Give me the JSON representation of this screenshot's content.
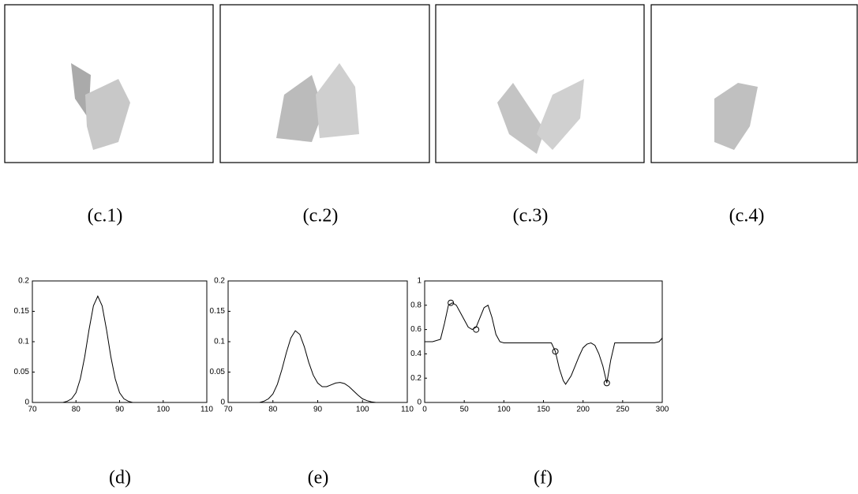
{
  "images": [
    {
      "caption": "(c.1)"
    },
    {
      "caption": "(c.2)"
    },
    {
      "caption": "(c.3)"
    },
    {
      "caption": "(c.4)"
    }
  ],
  "chart_data": [
    {
      "type": "line",
      "caption": "(d)",
      "x": [
        77,
        78,
        79,
        80,
        81,
        82,
        83,
        84,
        85,
        86,
        87,
        88,
        89,
        90,
        91,
        92,
        93
      ],
      "series": [
        {
          "color": "#000000",
          "values": [
            0,
            0.002,
            0.006,
            0.016,
            0.039,
            0.075,
            0.12,
            0.159,
            0.175,
            0.159,
            0.12,
            0.075,
            0.039,
            0.016,
            0.006,
            0.002,
            0
          ]
        }
      ],
      "xlim": [
        70,
        110
      ],
      "xticks": [
        70,
        80,
        90,
        100,
        110
      ],
      "ylim": [
        0,
        0.2
      ],
      "yticks": [
        0,
        0.05,
        0.1,
        0.15,
        0.2
      ]
    },
    {
      "type": "line",
      "caption": "(e)",
      "x": [
        77,
        78,
        79,
        80,
        81,
        82,
        83,
        84,
        85,
        86,
        87,
        88,
        89,
        90,
        91,
        92,
        93,
        94,
        95,
        96,
        97,
        98,
        99,
        100,
        101,
        102,
        103
      ],
      "series": [
        {
          "color": "#000000",
          "values": [
            0,
            0.002,
            0.006,
            0.014,
            0.03,
            0.054,
            0.082,
            0.106,
            0.118,
            0.112,
            0.092,
            0.066,
            0.045,
            0.032,
            0.026,
            0.026,
            0.029,
            0.032,
            0.033,
            0.031,
            0.026,
            0.019,
            0.012,
            0.006,
            0.003,
            0.001,
            0
          ]
        }
      ],
      "xlim": [
        70,
        110
      ],
      "xticks": [
        70,
        80,
        90,
        100,
        110
      ],
      "ylim": [
        0,
        0.2
      ],
      "yticks": [
        0,
        0.05,
        0.1,
        0.15,
        0.2
      ]
    },
    {
      "type": "line",
      "caption": "(f)",
      "x": [
        0,
        10,
        20,
        25,
        30,
        35,
        40,
        45,
        50,
        55,
        60,
        65,
        70,
        75,
        80,
        85,
        90,
        95,
        100,
        110,
        120,
        130,
        140,
        150,
        160,
        165,
        170,
        175,
        178,
        185,
        190,
        195,
        200,
        205,
        210,
        215,
        220,
        225,
        230,
        235,
        240,
        250,
        260,
        270,
        280,
        290,
        296,
        300
      ],
      "series": [
        {
          "color": "#000000",
          "values": [
            0.5,
            0.5,
            0.52,
            0.65,
            0.8,
            0.82,
            0.8,
            0.74,
            0.68,
            0.62,
            0.6,
            0.62,
            0.7,
            0.78,
            0.8,
            0.7,
            0.56,
            0.5,
            0.49,
            0.49,
            0.49,
            0.49,
            0.49,
            0.49,
            0.49,
            0.42,
            0.28,
            0.18,
            0.15,
            0.22,
            0.3,
            0.38,
            0.45,
            0.48,
            0.49,
            0.47,
            0.4,
            0.3,
            0.16,
            0.35,
            0.49,
            0.49,
            0.49,
            0.49,
            0.49,
            0.49,
            0.5,
            0.53
          ]
        },
        {
          "color": "#000000",
          "marker": "circle",
          "x": [
            33,
            65,
            165,
            230
          ],
          "values": [
            0.82,
            0.6,
            0.42,
            0.16
          ]
        }
      ],
      "xlim": [
        0,
        300
      ],
      "xticks": [
        0,
        50,
        100,
        150,
        200,
        250,
        300
      ],
      "ylim": [
        0,
        1
      ],
      "yticks": [
        0,
        0.2,
        0.4,
        0.6,
        0.8,
        1
      ]
    }
  ]
}
